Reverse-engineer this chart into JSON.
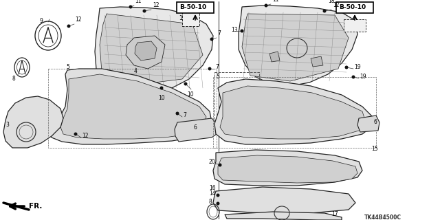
{
  "bg_color": "#ffffff",
  "line_color": "#000000",
  "diagram_code": "TK44B4500C",
  "arrow_label": "FR.",
  "b50_10": "B-50-10",
  "figsize": [
    6.4,
    3.2
  ],
  "dpi": 100
}
